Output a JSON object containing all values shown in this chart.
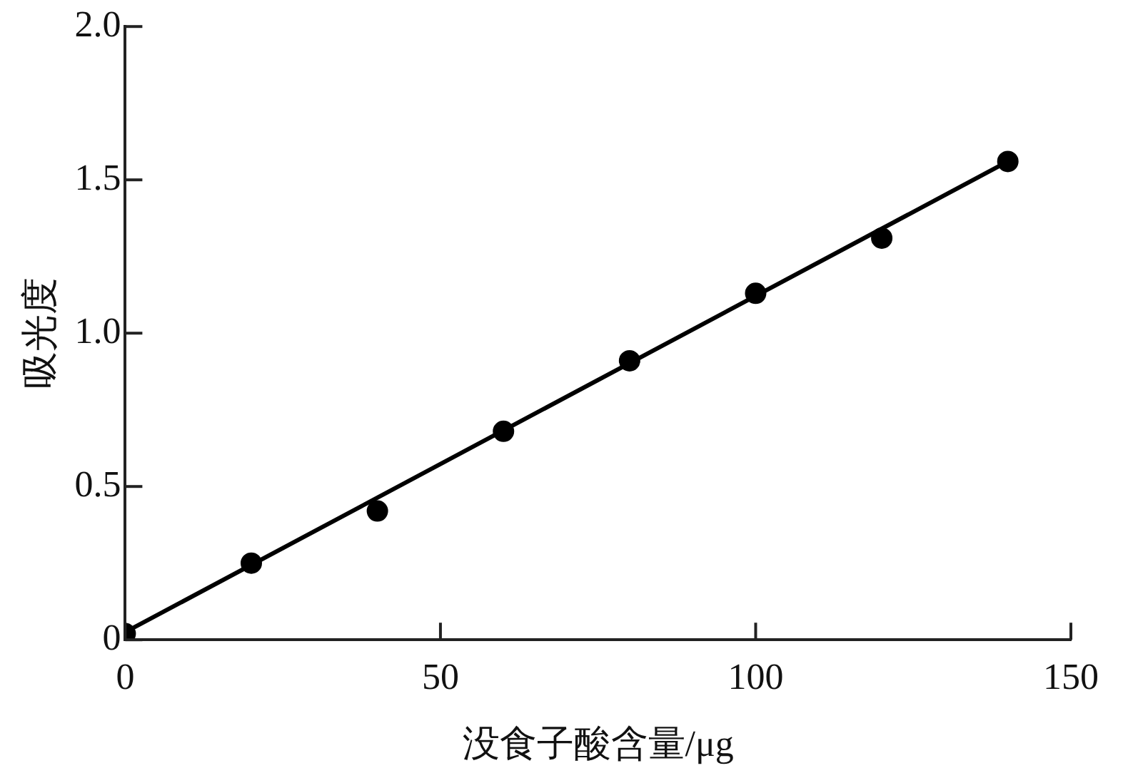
{
  "chart_data": {
    "type": "scatter",
    "xlabel": "没食子酸含量/μg",
    "ylabel": "吸光度",
    "xlim": [
      0,
      150
    ],
    "xticks": [
      0,
      50,
      100,
      150
    ],
    "ylim": [
      0,
      2
    ],
    "yticks": [
      {
        "value": 0,
        "label": "0"
      },
      0.5,
      {
        "value": 1,
        "label": "1.0"
      },
      1.5,
      {
        "value": 2,
        "label": "2.0"
      }
    ],
    "grid": false,
    "legend": false,
    "marker": "circle",
    "series": [
      {
        "color": "#000000",
        "x": [
          0,
          20,
          40,
          60,
          80,
          100,
          120,
          140
        ],
        "values": [
          0.02,
          0.25,
          0.42,
          0.68,
          0.91,
          1.13,
          1.31,
          1.56
        ]
      },
      {
        "type": "line",
        "color": "#000000",
        "x": [
          0,
          140
        ],
        "values": [
          0.025,
          1.56
        ],
        "marker": "none",
        "line_style": "solid"
      }
    ]
  }
}
